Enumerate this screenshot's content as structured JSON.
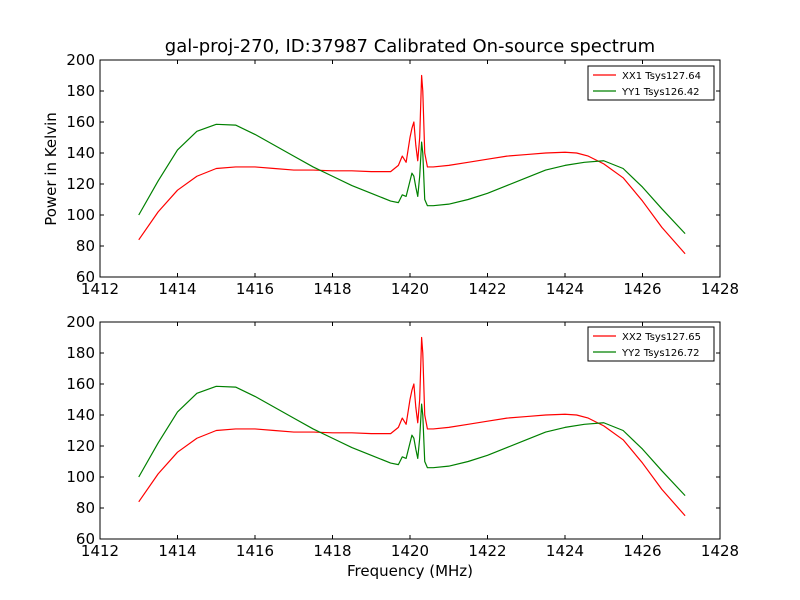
{
  "figure": {
    "title": "gal-proj-270, ID:37987 Calibrated On-source spectrum",
    "xlabel": "Frequency (MHz)",
    "ylabel": "Power in Kelvin"
  },
  "colors": {
    "xx": "#ff0000",
    "yy": "#008000",
    "axes": "#000000",
    "background": "#ffffff"
  },
  "chart_data": [
    {
      "type": "line",
      "xlim": [
        1412,
        1428
      ],
      "ylim": [
        60,
        200
      ],
      "xticks": [
        1412,
        1414,
        1416,
        1418,
        1420,
        1422,
        1424,
        1426,
        1428
      ],
      "yticks": [
        60,
        80,
        100,
        120,
        140,
        160,
        180,
        200
      ],
      "ylabel": "Power in Kelvin",
      "xlabel": "",
      "grid": false,
      "legend_position": "top-right",
      "series": [
        {
          "name": "XX1 Tsys127.64",
          "color": "#ff0000",
          "x": [
            1413.0,
            1413.5,
            1414.0,
            1414.5,
            1415.0,
            1415.5,
            1416.0,
            1416.5,
            1417.0,
            1417.5,
            1418.0,
            1418.5,
            1419.0,
            1419.5,
            1419.7,
            1419.8,
            1419.9,
            1420.0,
            1420.05,
            1420.1,
            1420.15,
            1420.2,
            1420.25,
            1420.3,
            1420.33,
            1420.38,
            1420.45,
            1420.6,
            1421.0,
            1421.5,
            1422.0,
            1422.5,
            1423.0,
            1423.5,
            1424.0,
            1424.3,
            1424.6,
            1425.0,
            1425.5,
            1426.0,
            1426.5,
            1427.1
          ],
          "y": [
            84,
            102,
            116,
            125,
            130,
            131,
            131,
            130,
            129,
            129,
            128.5,
            128.5,
            128,
            128,
            132,
            138,
            134,
            150,
            156,
            160,
            145,
            135,
            150,
            190,
            180,
            140,
            131,
            131,
            132,
            134,
            136,
            138,
            139,
            140,
            140.5,
            140,
            138,
            133,
            124,
            109,
            92,
            75
          ]
        },
        {
          "name": "YY1 Tsys126.42",
          "color": "#008000",
          "x": [
            1413.0,
            1413.5,
            1414.0,
            1414.5,
            1415.0,
            1415.5,
            1416.0,
            1416.5,
            1417.0,
            1417.5,
            1418.0,
            1418.5,
            1419.0,
            1419.5,
            1419.7,
            1419.8,
            1419.9,
            1420.0,
            1420.05,
            1420.1,
            1420.15,
            1420.2,
            1420.25,
            1420.3,
            1420.33,
            1420.38,
            1420.45,
            1420.6,
            1421.0,
            1421.5,
            1422.0,
            1422.5,
            1423.0,
            1423.5,
            1424.0,
            1424.5,
            1425.0,
            1425.5,
            1426.0,
            1426.5,
            1427.1
          ],
          "y": [
            100,
            122,
            142,
            154,
            158.5,
            158,
            152,
            145,
            138,
            131,
            125,
            119,
            114,
            109,
            108,
            113,
            112,
            122,
            127,
            125,
            118,
            112,
            125,
            147,
            140,
            110,
            106,
            106,
            107,
            110,
            114,
            119,
            124,
            129,
            132,
            134,
            135,
            130,
            118,
            104,
            88
          ]
        }
      ]
    },
    {
      "type": "line",
      "xlim": [
        1412,
        1428
      ],
      "ylim": [
        60,
        200
      ],
      "xticks": [
        1412,
        1414,
        1416,
        1418,
        1420,
        1422,
        1424,
        1426,
        1428
      ],
      "yticks": [
        60,
        80,
        100,
        120,
        140,
        160,
        180,
        200
      ],
      "ylabel": "",
      "xlabel": "Frequency (MHz)",
      "grid": false,
      "legend_position": "top-right",
      "series": [
        {
          "name": "XX2 Tsys127.65",
          "color": "#ff0000",
          "x": [
            1413.0,
            1413.5,
            1414.0,
            1414.5,
            1415.0,
            1415.5,
            1416.0,
            1416.5,
            1417.0,
            1417.5,
            1418.0,
            1418.5,
            1419.0,
            1419.5,
            1419.7,
            1419.8,
            1419.9,
            1420.0,
            1420.05,
            1420.1,
            1420.15,
            1420.2,
            1420.25,
            1420.3,
            1420.33,
            1420.38,
            1420.45,
            1420.6,
            1421.0,
            1421.5,
            1422.0,
            1422.5,
            1423.0,
            1423.5,
            1424.0,
            1424.3,
            1424.6,
            1425.0,
            1425.5,
            1426.0,
            1426.5,
            1427.1
          ],
          "y": [
            84,
            102,
            116,
            125,
            130,
            131,
            131,
            130,
            129,
            129,
            128.5,
            128.5,
            128,
            128,
            132,
            138,
            134,
            150,
            156,
            160,
            145,
            135,
            150,
            190,
            180,
            140,
            131,
            131,
            132,
            134,
            136,
            138,
            139,
            140,
            140.5,
            140,
            138,
            133,
            124,
            109,
            92,
            75
          ]
        },
        {
          "name": "YY2 Tsys126.72",
          "color": "#008000",
          "x": [
            1413.0,
            1413.5,
            1414.0,
            1414.5,
            1415.0,
            1415.5,
            1416.0,
            1416.5,
            1417.0,
            1417.5,
            1418.0,
            1418.5,
            1419.0,
            1419.5,
            1419.7,
            1419.8,
            1419.9,
            1420.0,
            1420.05,
            1420.1,
            1420.15,
            1420.2,
            1420.25,
            1420.3,
            1420.33,
            1420.38,
            1420.45,
            1420.6,
            1421.0,
            1421.5,
            1422.0,
            1422.5,
            1423.0,
            1423.5,
            1424.0,
            1424.5,
            1425.0,
            1425.5,
            1426.0,
            1426.5,
            1427.1
          ],
          "y": [
            100,
            122,
            142,
            154,
            158.5,
            158,
            152,
            145,
            138,
            131,
            125,
            119,
            114,
            109,
            108,
            113,
            112,
            122,
            127,
            125,
            118,
            112,
            125,
            147,
            140,
            110,
            106,
            106,
            107,
            110,
            114,
            119,
            124,
            129,
            132,
            134,
            135,
            130,
            118,
            104,
            88
          ]
        }
      ]
    }
  ]
}
